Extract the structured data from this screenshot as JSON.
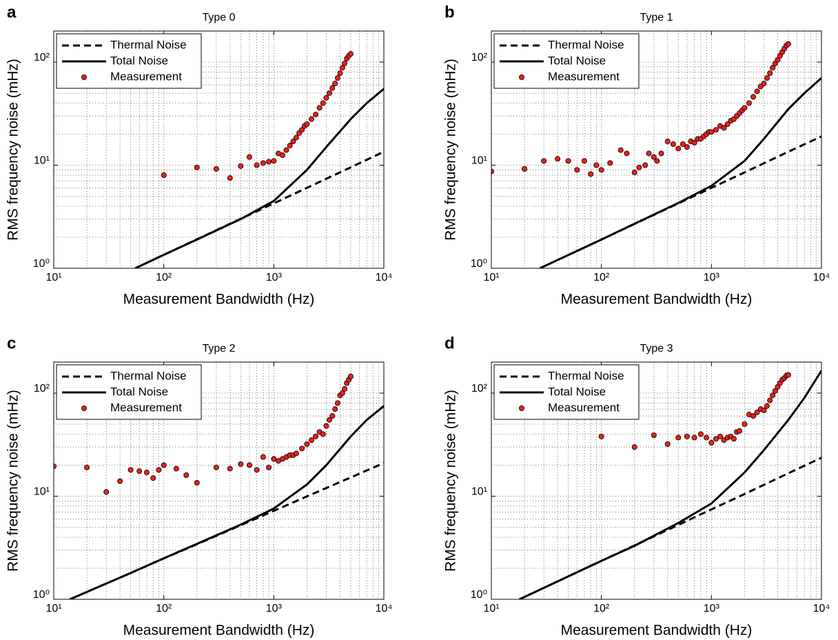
{
  "chart_data": [
    {
      "type": "line",
      "panel_label": "a",
      "title": "Type 0",
      "xlabel": "Measurement Bandwidth (Hz)",
      "ylabel": "RMS frequency noise (mHz)",
      "xscale": "log",
      "yscale": "log",
      "xlim": [
        10,
        10000
      ],
      "ylim": [
        1,
        200
      ],
      "xticks": [
        {
          "value": 10,
          "label": "10¹"
        },
        {
          "value": 100,
          "label": "10²"
        },
        {
          "value": 1000,
          "label": "10³"
        },
        {
          "value": 10000,
          "label": "10⁴"
        }
      ],
      "yticks": [
        {
          "value": 1,
          "label": "10⁰"
        },
        {
          "value": 10,
          "label": "10¹"
        },
        {
          "value": 100,
          "label": "10²"
        }
      ],
      "grid": true,
      "minor_grid": true,
      "legend": "upper left",
      "series": [
        {
          "name": "Thermal Noise",
          "style": "dashed",
          "color": "#000000",
          "x": [
            55,
            100,
            200,
            500,
            1000,
            2000,
            5000,
            10000
          ],
          "values": [
            1,
            1.35,
            1.91,
            3.02,
            4.26,
            6.03,
            9.53,
            13.5
          ]
        },
        {
          "name": "Total Noise",
          "style": "solid",
          "color": "#000000",
          "x": [
            55,
            100,
            200,
            500,
            1000,
            2000,
            3000,
            5000,
            7000,
            10000
          ],
          "values": [
            1,
            1.35,
            1.9,
            3.0,
            4.5,
            9,
            15,
            28,
            40,
            55
          ]
        },
        {
          "name": "Measurement",
          "style": "markers",
          "color": "#e8201c",
          "x": [
            100,
            200,
            300,
            400,
            500,
            600,
            700,
            800,
            900,
            1000,
            1100,
            1200,
            1300,
            1400,
            1500,
            1600,
            1700,
            1800,
            1900,
            2000,
            2200,
            2400,
            2600,
            2800,
            3000,
            3200,
            3400,
            3600,
            3800,
            4000,
            4200,
            4400,
            4600,
            4800,
            5000
          ],
          "values": [
            8,
            9.5,
            9.2,
            7.5,
            9.8,
            12,
            10,
            10.5,
            10.8,
            11,
            13,
            12.5,
            14,
            15.5,
            17,
            18.5,
            20.5,
            22,
            24,
            25,
            28,
            31,
            36,
            40,
            45,
            50,
            56,
            62,
            70,
            78,
            88,
            97,
            108,
            115,
            120
          ]
        }
      ]
    },
    {
      "type": "line",
      "panel_label": "b",
      "title": "Type 1",
      "xlabel": "Measurement Bandwidth (Hz)",
      "ylabel": "RMS frequency noise (mHz)",
      "xscale": "log",
      "yscale": "log",
      "xlim": [
        10,
        10000
      ],
      "ylim": [
        1,
        200
      ],
      "xticks": [
        {
          "value": 10,
          "label": "10¹"
        },
        {
          "value": 100,
          "label": "10²"
        },
        {
          "value": 1000,
          "label": "10³"
        },
        {
          "value": 10000,
          "label": "10⁴"
        }
      ],
      "yticks": [
        {
          "value": 1,
          "label": "10⁰"
        },
        {
          "value": 10,
          "label": "10¹"
        },
        {
          "value": 100,
          "label": "10²"
        }
      ],
      "grid": true,
      "minor_grid": true,
      "legend": "upper left",
      "series": [
        {
          "name": "Thermal Noise",
          "style": "dashed",
          "color": "#000000",
          "x": [
            27.6,
            100,
            200,
            500,
            1000,
            2000,
            5000,
            10000
          ],
          "values": [
            1,
            1.9,
            2.69,
            4.26,
            6.02,
            8.51,
            13.5,
            19
          ]
        },
        {
          "name": "Total Noise",
          "style": "solid",
          "color": "#000000",
          "x": [
            27.6,
            100,
            200,
            500,
            1000,
            2000,
            3000,
            5000,
            7000,
            10000
          ],
          "values": [
            1,
            1.9,
            2.7,
            4.3,
            6.3,
            11,
            18,
            35,
            50,
            70
          ]
        },
        {
          "name": "Measurement",
          "style": "markers",
          "color": "#e8201c",
          "x": [
            10,
            20,
            30,
            40,
            50,
            60,
            70,
            80,
            90,
            100,
            120,
            150,
            170,
            200,
            220,
            250,
            270,
            300,
            320,
            350,
            400,
            450,
            500,
            550,
            600,
            650,
            700,
            750,
            800,
            850,
            900,
            950,
            1000,
            1100,
            1200,
            1300,
            1400,
            1500,
            1600,
            1700,
            1800,
            1900,
            2000,
            2200,
            2400,
            2600,
            2800,
            3000,
            3200,
            3400,
            3600,
            3800,
            4000,
            4200,
            4400,
            4600,
            4800,
            5000
          ],
          "values": [
            8.7,
            9.2,
            11,
            11.5,
            11,
            9,
            11,
            8.2,
            10,
            9,
            10.5,
            14,
            13,
            8.5,
            9.5,
            10,
            13,
            12,
            11,
            13,
            17,
            16,
            14.5,
            16,
            15,
            17,
            16.5,
            18,
            18,
            19,
            20,
            21,
            21,
            22,
            24,
            23,
            25,
            27,
            28,
            30,
            32,
            34,
            36,
            40,
            46,
            52,
            58,
            62,
            70,
            78,
            88,
            97,
            105,
            115,
            125,
            135,
            145,
            150
          ]
        }
      ]
    },
    {
      "type": "line",
      "panel_label": "c",
      "title": "Type 2",
      "xlabel": "Measurement Bandwidth (Hz)",
      "ylabel": "RMS frequency noise (mHz)",
      "xscale": "log",
      "yscale": "log",
      "xlim": [
        10,
        10000
      ],
      "ylim": [
        1,
        200
      ],
      "xticks": [
        {
          "value": 10,
          "label": "10¹"
        },
        {
          "value": 100,
          "label": "10²"
        },
        {
          "value": 1000,
          "label": "10³"
        },
        {
          "value": 10000,
          "label": "10⁴"
        }
      ],
      "yticks": [
        {
          "value": 1,
          "label": "10⁰"
        },
        {
          "value": 10,
          "label": "10¹"
        },
        {
          "value": 100,
          "label": "10²"
        }
      ],
      "grid": true,
      "minor_grid": true,
      "legend": "upper left",
      "series": [
        {
          "name": "Thermal Noise",
          "style": "dashed",
          "color": "#000000",
          "x": [
            14,
            20,
            50,
            100,
            200,
            500,
            1000,
            2000,
            5000,
            10000
          ],
          "values": [
            1,
            1.18,
            1.8,
            2.49,
            3.42,
            5.23,
            7.22,
            9.96,
            15.2,
            21
          ]
        },
        {
          "name": "Total Noise",
          "style": "solid",
          "color": "#000000",
          "x": [
            14,
            50,
            100,
            200,
            500,
            1000,
            2000,
            3000,
            5000,
            7000,
            10000
          ],
          "values": [
            1,
            1.8,
            2.5,
            3.45,
            5.3,
            7.6,
            13,
            20,
            38,
            55,
            75
          ]
        },
        {
          "name": "Measurement",
          "style": "markers",
          "color": "#e8201c",
          "x": [
            10,
            20,
            30,
            40,
            50,
            60,
            70,
            80,
            90,
            100,
            130,
            160,
            200,
            300,
            400,
            500,
            600,
            700,
            800,
            900,
            1000,
            1100,
            1200,
            1300,
            1400,
            1500,
            1600,
            1800,
            2000,
            2200,
            2400,
            2600,
            2800,
            3000,
            3200,
            3400,
            3600,
            3800,
            4000,
            4200,
            4400,
            4600,
            4800,
            5000
          ],
          "values": [
            19.5,
            19,
            11,
            14,
            18,
            17.5,
            17,
            15,
            18,
            20,
            18.5,
            16,
            13.5,
            19,
            18.5,
            20.5,
            20,
            18,
            24,
            19,
            23,
            22,
            23,
            24,
            25,
            25,
            26,
            29,
            32,
            35,
            38,
            42,
            40,
            48,
            55,
            60,
            70,
            80,
            95,
            100,
            110,
            125,
            135,
            145
          ]
        }
      ]
    },
    {
      "type": "line",
      "panel_label": "d",
      "title": "Type 3",
      "xlabel": "Measurement Bandwidth (Hz)",
      "ylabel": "RMS frequency noise (mHz)",
      "xscale": "log",
      "yscale": "log",
      "xlim": [
        10,
        10000
      ],
      "ylim": [
        1,
        200
      ],
      "xticks": [
        {
          "value": 10,
          "label": "10¹"
        },
        {
          "value": 100,
          "label": "10²"
        },
        {
          "value": 1000,
          "label": "10³"
        },
        {
          "value": 10000,
          "label": "10⁴"
        }
      ],
      "yticks": [
        {
          "value": 1,
          "label": "10⁰"
        },
        {
          "value": 10,
          "label": "10¹"
        },
        {
          "value": 100,
          "label": "10²"
        }
      ],
      "grid": true,
      "minor_grid": true,
      "legend": "upper left",
      "series": [
        {
          "name": "Thermal Noise",
          "style": "dashed",
          "color": "#000000",
          "x": [
            18,
            100,
            200,
            500,
            1000,
            2000,
            5000,
            10000
          ],
          "values": [
            1,
            2.36,
            3.33,
            5.27,
            7.45,
            10.5,
            16.7,
            23.6
          ]
        },
        {
          "name": "Total Noise",
          "style": "solid",
          "color": "#000000",
          "x": [
            18,
            100,
            200,
            500,
            1000,
            2000,
            3000,
            5000,
            7000,
            10000
          ],
          "values": [
            1,
            2.36,
            3.3,
            5.5,
            8.5,
            17,
            28,
            55,
            90,
            165
          ]
        },
        {
          "name": "Measurement",
          "style": "markers",
          "color": "#e8201c",
          "x": [
            100,
            200,
            300,
            400,
            500,
            600,
            700,
            800,
            900,
            1000,
            1100,
            1200,
            1300,
            1400,
            1500,
            1600,
            1700,
            1800,
            2000,
            2200,
            2400,
            2600,
            2800,
            3000,
            3200,
            3400,
            3600,
            3800,
            4000,
            4200,
            4400,
            4600,
            4800,
            5000
          ],
          "values": [
            38,
            30,
            39,
            32,
            37,
            38,
            37,
            40,
            37,
            33,
            36,
            38,
            35,
            37,
            38,
            36,
            42,
            43,
            50,
            62,
            60,
            65,
            70,
            68,
            75,
            85,
            95,
            105,
            115,
            125,
            135,
            140,
            148,
            150
          ]
        }
      ]
    }
  ]
}
